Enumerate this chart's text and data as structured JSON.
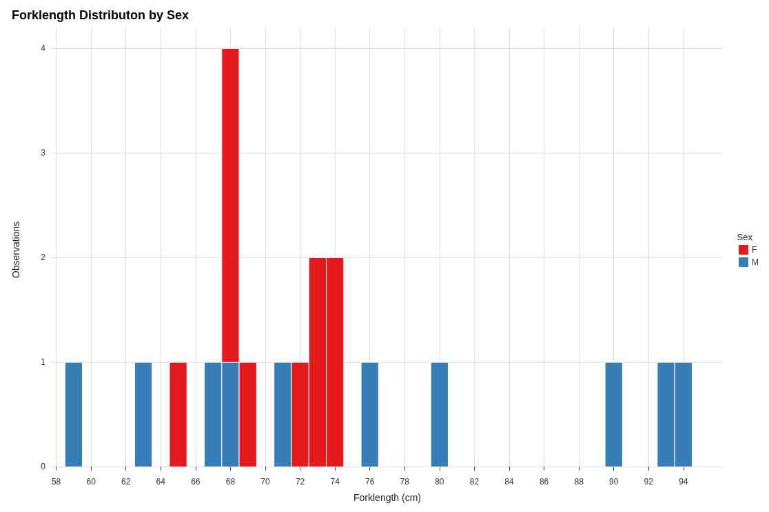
{
  "chart_data": {
    "type": "bar",
    "title": "Forklength Distributon by Sex",
    "xlabel": "Forklength (cm)",
    "ylabel": "Observations",
    "legend_title": "Sex",
    "x": [
      59,
      60,
      61,
      62,
      63,
      64,
      65,
      66,
      67,
      68,
      69,
      70,
      71,
      72,
      73,
      74,
      75,
      76,
      77,
      78,
      79,
      80,
      81,
      82,
      83,
      84,
      85,
      86,
      87,
      88,
      89,
      90,
      91,
      92,
      93,
      94
    ],
    "series": [
      {
        "name": "M",
        "color": "#377eb8",
        "values": [
          1,
          0,
          0,
          0,
          1,
          0,
          0,
          0,
          1,
          1,
          0,
          0,
          1,
          0,
          0,
          0,
          0,
          1,
          0,
          0,
          0,
          1,
          0,
          0,
          0,
          0,
          0,
          0,
          0,
          0,
          0,
          1,
          0,
          0,
          1,
          1
        ]
      },
      {
        "name": "F",
        "color": "#e41a1c",
        "values": [
          0,
          0,
          0,
          0,
          0,
          0,
          1,
          0,
          0,
          3,
          1,
          0,
          0,
          1,
          2,
          2,
          0,
          0,
          0,
          0,
          0,
          0,
          0,
          0,
          0,
          0,
          0,
          0,
          0,
          0,
          0,
          0,
          0,
          0,
          0,
          0
        ]
      }
    ],
    "stacked": true,
    "xlim": [
      57.7,
      96.3
    ],
    "xticks": [
      58,
      60,
      62,
      64,
      66,
      68,
      70,
      72,
      74,
      76,
      78,
      80,
      82,
      84,
      86,
      88,
      90,
      92,
      94
    ],
    "ylim": [
      -0.05,
      4.2
    ],
    "yticks": [
      0,
      1,
      2,
      3,
      4
    ],
    "grid": true,
    "legend": "right"
  }
}
